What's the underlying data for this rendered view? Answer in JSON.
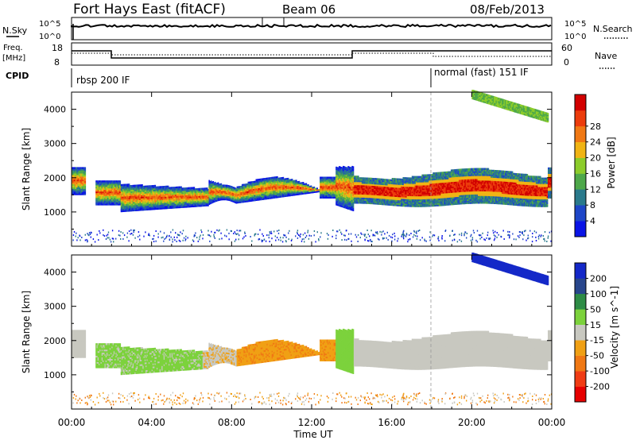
{
  "header": {
    "title": "Fort Hays East (fitACF)",
    "beam": "Beam 06",
    "date": "08/Feb/2013"
  },
  "panels": {
    "nsky_label": "N.Sky",
    "nsearch_label": "N.Search",
    "nsky_ticks": [
      "10^5",
      "10^0"
    ],
    "freq_label": "Freq.",
    "freq_unit": "[MHz]",
    "freq_ticks": [
      "18",
      "8"
    ],
    "nave_label": "Nave",
    "nave_ticks": [
      "60",
      "0"
    ],
    "cpid_label": "CPID",
    "cpid_segments": [
      {
        "text": "rbsp 200 IF",
        "start_hour": 0
      },
      {
        "text": "normal (fast) 151 IF",
        "start_hour": 18
      }
    ]
  },
  "chart_data": [
    {
      "type": "heatmap",
      "ylabel": "Slant Range [km]",
      "ylim": [
        0,
        4500
      ],
      "yticks": [
        "1000",
        "2000",
        "3000",
        "4000"
      ],
      "colorbar": {
        "label": "Power [dB]",
        "ticks": [
          "4",
          "8",
          "12",
          "16",
          "20",
          "24",
          "28"
        ],
        "colors": [
          "#0a14e6",
          "#1e46c8",
          "#2a7a8c",
          "#4ea84a",
          "#8ccc2a",
          "#f0b414",
          "#f07814",
          "#ec3c0c",
          "#d20000"
        ]
      }
    },
    {
      "type": "heatmap",
      "ylabel": "Slant Range [km]",
      "ylim": [
        0,
        4500
      ],
      "yticks": [
        "1000",
        "2000",
        "3000",
        "4000"
      ],
      "colorbar": {
        "label": "Velocity [m s^-1]",
        "ticks": [
          "200",
          "100",
          "50",
          "15",
          "-15",
          "-50",
          "-100",
          "-200"
        ],
        "colors": [
          "#1428c8",
          "#28468c",
          "#2e8c46",
          "#7cd23c",
          "#c8c8c0",
          "#f0a014",
          "#f07814",
          "#f03c14",
          "#e60000"
        ]
      }
    }
  ],
  "xaxis": {
    "label": "Time UT",
    "ticks": [
      "00:00",
      "04:00",
      "08:00",
      "12:00",
      "16:00",
      "20:00",
      "00:00"
    ]
  }
}
